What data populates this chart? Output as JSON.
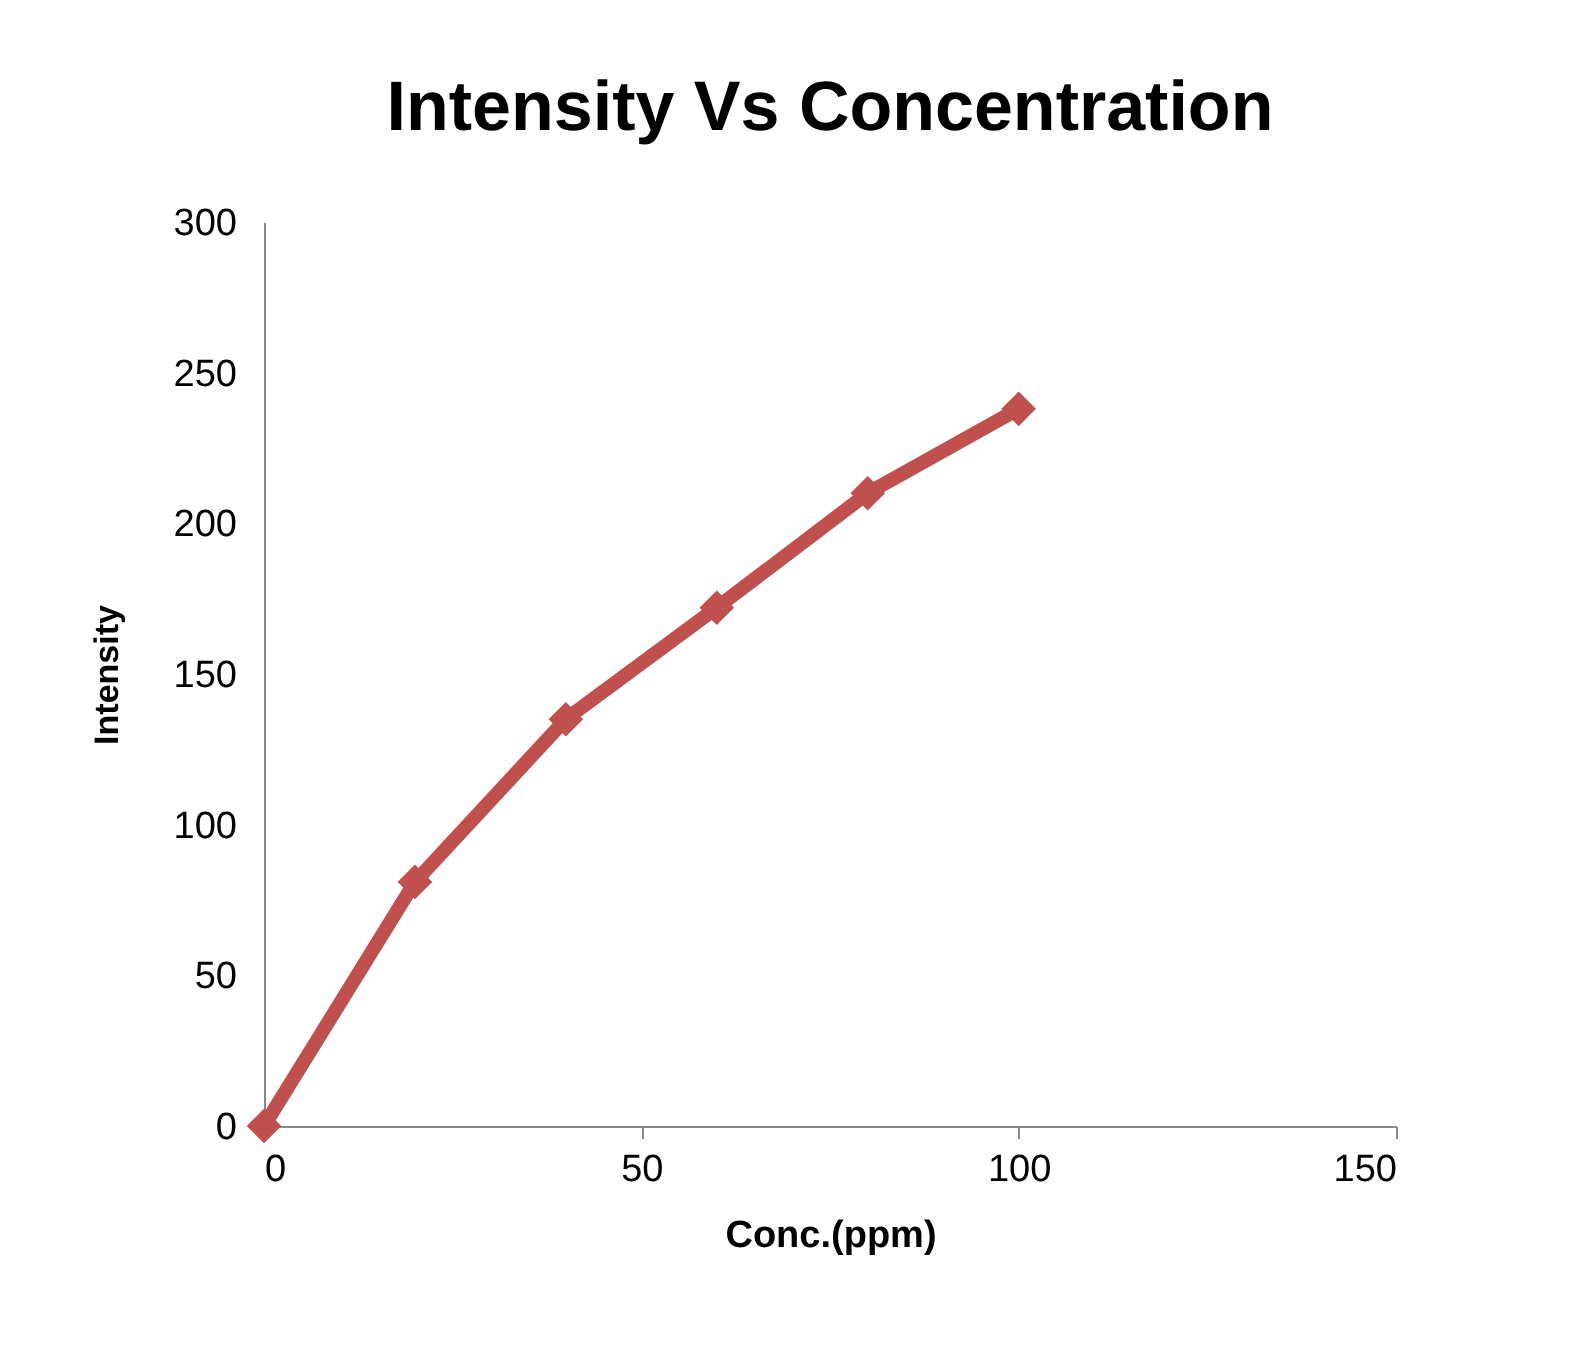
{
  "chart_data": {
    "type": "line",
    "title": "Intensity Vs Concentration",
    "xlabel": "Conc.(ppm)",
    "ylabel": "Intensity",
    "x": [
      0,
      20,
      40,
      60,
      80,
      100
    ],
    "series": [
      {
        "color": "#c0504d",
        "values": [
          0,
          81,
          135,
          172,
          210,
          238
        ]
      }
    ],
    "xlim": [
      0,
      150
    ],
    "xticks": [
      0,
      50,
      100,
      150
    ],
    "ylim": [
      0,
      300
    ],
    "yticks": [
      0,
      50,
      100,
      150,
      200,
      250,
      300
    ],
    "grid": false,
    "legend": false,
    "marker": "diamond",
    "line_style": "solid"
  }
}
